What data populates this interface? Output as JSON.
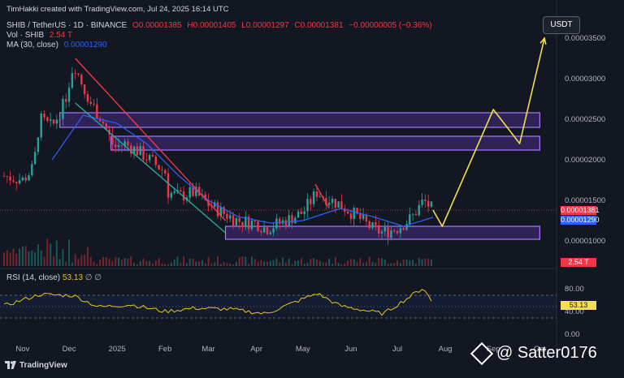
{
  "credit": "TimHakki created with TradingView.com, Jul 24, 2025 16:14 UTC",
  "header": {
    "symbol": "SHIB / TetherUS · 1D · BINANCE",
    "ohlc_o": "O0.00001385",
    "ohlc_h": "H0.00001405",
    "ohlc_l": "L0.00001297",
    "ohlc_c": "C0.00001381",
    "change": "−0.00000005 (−0.36%)",
    "vol_label": "Vol · SHIB",
    "vol_value": "2.54 T",
    "ma_label": "MA (30, close)",
    "ma_value": "0.00001290"
  },
  "rsi_header": {
    "label": "RSI (14, close)",
    "value": "53.13",
    "extra1": "∅",
    "extra2": "∅"
  },
  "currency_button": "USDT",
  "price_tags": {
    "last": "0.00001381",
    "ma": "0.00001290",
    "vol": "2.54 T",
    "rsi": "53.13"
  },
  "footer_brand": "TradingView",
  "watermark": "@ Satter0176",
  "colors": {
    "background": "#131722",
    "up": "#26a69a",
    "down": "#f23645",
    "ma": "#2962ff",
    "zone": "#7b3fe4",
    "projection": "#f0e14a",
    "rsi": "#e6c81a"
  },
  "chart_data": {
    "type": "line",
    "price_axis": {
      "ticks": [
        "0.00003500",
        "0.00003000",
        "0.00002500",
        "0.00002000",
        "0.00001500",
        "0.00001000"
      ],
      "tick_values": [
        3.5e-05,
        3e-05,
        2.5e-05,
        2e-05,
        1.5e-05,
        1e-05
      ]
    },
    "x_axis": {
      "ticks": [
        "Nov",
        "Dec",
        "2025",
        "Feb",
        "Mar",
        "Apr",
        "May",
        "Jun",
        "Jul",
        "Aug",
        "Sep",
        "Oct"
      ],
      "tick_dates": [
        "2024-11-01",
        "2024-12-01",
        "2025-01-01",
        "2025-02-01",
        "2025-03-01",
        "2025-04-01",
        "2025-05-01",
        "2025-06-01",
        "2025-07-01",
        "2025-08-01",
        "2025-09-01",
        "2025-10-01"
      ]
    },
    "rsi_axis": {
      "ticks": [
        "80.00",
        "40.00",
        "0.00"
      ],
      "tick_values": [
        80,
        40,
        0
      ]
    },
    "series": [
      {
        "name": "SHIB / TetherUS",
        "dates": [
          "2024-10-20",
          "2024-11-01",
          "2024-11-08",
          "2024-11-12",
          "2024-11-20",
          "2024-11-28",
          "2024-12-04",
          "2024-12-08",
          "2024-12-15",
          "2024-12-22",
          "2024-12-30",
          "2025-01-06",
          "2025-01-15",
          "2025-01-22",
          "2025-02-01",
          "2025-02-03",
          "2025-02-10",
          "2025-02-20",
          "2025-03-01",
          "2025-03-10",
          "2025-03-20",
          "2025-04-01",
          "2025-04-07",
          "2025-04-20",
          "2025-05-01",
          "2025-05-10",
          "2025-05-14",
          "2025-05-25",
          "2025-06-05",
          "2025-06-15",
          "2025-06-22",
          "2025-07-01",
          "2025-07-10",
          "2025-07-18",
          "2025-07-24"
        ],
        "values": [
          1.8e-05,
          1.75e-05,
          1.9e-05,
          2.5e-05,
          2.4e-05,
          2.7e-05,
          3.2e-05,
          3e-05,
          2.7e-05,
          2.5e-05,
          2.15e-05,
          2.2e-05,
          2.1e-05,
          2e-05,
          1.85e-05,
          1.6e-05,
          1.55e-05,
          1.6e-05,
          1.45e-05,
          1.35e-05,
          1.25e-05,
          1.22e-05,
          1.15e-05,
          1.25e-05,
          1.35e-05,
          1.6e-05,
          1.55e-05,
          1.45e-05,
          1.3e-05,
          1.15e-05,
          1.1e-05,
          1.16e-05,
          1.28e-05,
          1.5e-05,
          1.38e-05
        ]
      },
      {
        "name": "MA (30, close)",
        "dates": [
          "2024-11-20",
          "2024-12-10",
          "2025-01-01",
          "2025-01-20",
          "2025-02-10",
          "2025-03-01",
          "2025-03-20",
          "2025-04-10",
          "2025-05-01",
          "2025-05-25",
          "2025-06-15",
          "2025-07-05",
          "2025-07-24"
        ],
        "values": [
          2e-05,
          2.55e-05,
          2.45e-05,
          2.2e-05,
          1.8e-05,
          1.5e-05,
          1.3e-05,
          1.22e-05,
          1.25e-05,
          1.4e-05,
          1.3e-05,
          1.18e-05,
          1.29e-05
        ]
      },
      {
        "name": "RSI (14, close)",
        "dates": [
          "2024-10-20",
          "2024-11-12",
          "2024-12-04",
          "2024-12-20",
          "2025-01-10",
          "2025-02-01",
          "2025-02-20",
          "2025-03-15",
          "2025-04-07",
          "2025-05-10",
          "2025-05-25",
          "2025-06-22",
          "2025-07-18",
          "2025-07-24"
        ],
        "values": [
          50,
          70,
          68,
          48,
          52,
          40,
          46,
          44,
          36,
          72,
          50,
          36,
          82,
          53
        ]
      }
    ],
    "zones": [
      {
        "from_date": "2024-11-25",
        "to_date": "2025-10-01",
        "low": 2.4e-05,
        "high": 2.58e-05
      },
      {
        "from_date": "2024-12-28",
        "to_date": "2025-10-01",
        "low": 2.12e-05,
        "high": 2.29e-05
      },
      {
        "from_date": "2025-03-12",
        "to_date": "2025-10-01",
        "low": 1.02e-05,
        "high": 1.18e-05
      }
    ],
    "trendlines": [
      {
        "color": "#f23645",
        "points": [
          [
            "2024-12-05",
            3.25e-05
          ],
          [
            "2025-03-12",
            1.25e-05
          ]
        ]
      },
      {
        "color": "#26a69a",
        "points": [
          [
            "2024-12-05",
            2.7e-05
          ],
          [
            "2025-03-12",
            1.1e-05
          ]
        ]
      },
      {
        "color": "#f23645",
        "points": [
          [
            "2025-05-09",
            1.7e-05
          ],
          [
            "2025-05-18",
            1.4e-05
          ]
        ]
      }
    ],
    "projection": {
      "color": "#f0e14a",
      "points": [
        [
          "2025-07-24",
          1.38e-05
        ],
        [
          "2025-07-30",
          1.18e-05
        ],
        [
          "2025-09-01",
          2.62e-05
        ],
        [
          "2025-09-18",
          2.2e-05
        ],
        [
          "2025-10-04",
          3.5e-05
        ]
      ]
    }
  }
}
